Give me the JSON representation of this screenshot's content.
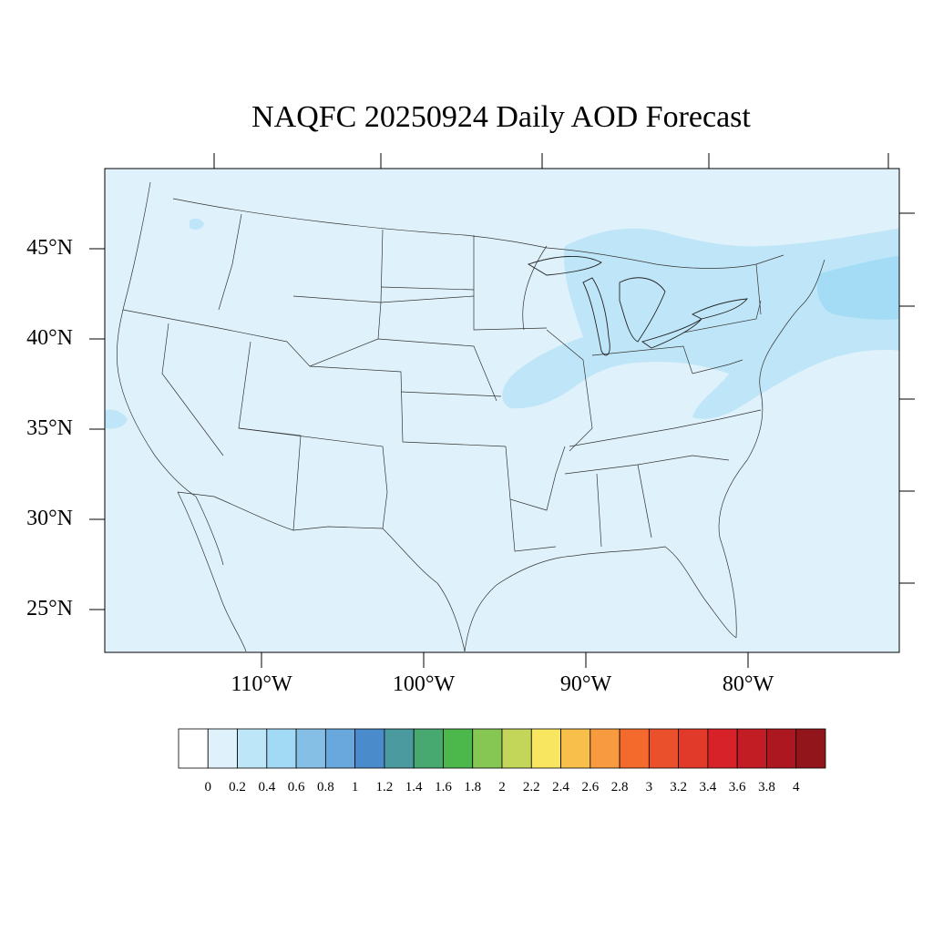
{
  "title": "NAQFC 20250924 Daily AOD Forecast",
  "map": {
    "projection": "lambert-conformal",
    "region": "Contiguous United States",
    "fill_color_background": "#dff2fb",
    "plume_color": "#bfe6f8",
    "plume_color_dense": "#a3dcf4",
    "lat_labels": [
      "45°N",
      "40°N",
      "35°N",
      "30°N",
      "25°N"
    ],
    "lon_labels": [
      "110°W",
      "100°W",
      "90°W",
      "80°W"
    ]
  },
  "colorbar": {
    "labels": [
      "0",
      "0.2",
      "0.4",
      "0.6",
      "0.8",
      "1",
      "1.2",
      "1.4",
      "1.6",
      "1.8",
      "2",
      "2.2",
      "2.4",
      "2.6",
      "2.8",
      "3",
      "3.2",
      "3.4",
      "3.6",
      "3.8",
      "4"
    ],
    "colors": [
      "#ffffff",
      "#dff2fb",
      "#bde6f8",
      "#a2d9f4",
      "#85bfe6",
      "#69a8dc",
      "#4a8ccb",
      "#4a9aa0",
      "#47a870",
      "#4cb84c",
      "#86c652",
      "#c4d65a",
      "#f8e660",
      "#f8c04a",
      "#f79a40",
      "#f36a2c",
      "#ea502c",
      "#e23a2a",
      "#d62228",
      "#c21c24",
      "#ad1820",
      "#93151c"
    ]
  }
}
